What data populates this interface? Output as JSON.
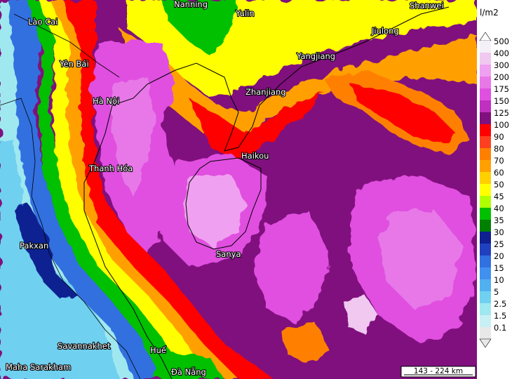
{
  "legend": {
    "unit": "l/m2",
    "levels": [
      {
        "label": "500",
        "color": "#f4f0f8"
      },
      {
        "label": "400",
        "color": "#f0c8f0"
      },
      {
        "label": "300",
        "color": "#f0a0f0"
      },
      {
        "label": "200",
        "color": "#e878e8"
      },
      {
        "label": "175",
        "color": "#e050e0"
      },
      {
        "label": "150",
        "color": "#c030c0"
      },
      {
        "label": "125",
        "color": "#80107e"
      },
      {
        "label": "100",
        "color": "#ff0000"
      },
      {
        "label": "90",
        "color": "#ff4020"
      },
      {
        "label": "80",
        "color": "#ff8000"
      },
      {
        "label": "70",
        "color": "#ffa000"
      },
      {
        "label": "60",
        "color": "#ffd000"
      },
      {
        "label": "50",
        "color": "#ffff00"
      },
      {
        "label": "45",
        "color": "#b0ff00"
      },
      {
        "label": "40",
        "color": "#00c000"
      },
      {
        "label": "35",
        "color": "#008000"
      },
      {
        "label": "30",
        "color": "#102090"
      },
      {
        "label": "25",
        "color": "#2040c0"
      },
      {
        "label": "20",
        "color": "#3070e0"
      },
      {
        "label": "15",
        "color": "#4090f0"
      },
      {
        "label": "10",
        "color": "#50b0f0"
      },
      {
        "label": "5",
        "color": "#70d0f0"
      },
      {
        "label": "2.5",
        "color": "#a0e8f0"
      },
      {
        "label": "1.5",
        "color": "#c8f0f4"
      },
      {
        "label": "0.1",
        "color": "#e8e8e8"
      }
    ]
  },
  "cities": [
    {
      "name": "Nanning"
    },
    {
      "name": "Yulin"
    },
    {
      "name": "Shanwei"
    },
    {
      "name": "Lào Cai"
    },
    {
      "name": "Jiulong"
    },
    {
      "name": "Yên Bái"
    },
    {
      "name": "Yangjiang"
    },
    {
      "name": "Zhanjiang"
    },
    {
      "name": "Hà Nội"
    },
    {
      "name": "Haikou"
    },
    {
      "name": "Thanh Hóa"
    },
    {
      "name": "Sanya"
    },
    {
      "name": "Pakxan"
    },
    {
      "name": "Savannakhet"
    },
    {
      "name": "Huế"
    },
    {
      "name": "Maha Sarakham"
    },
    {
      "name": "Đà Nẵng"
    }
  ],
  "scale_bar": {
    "label": "143 - 224 km"
  },
  "colors": {
    "sea_base": "#80107e",
    "border_line": "#000000"
  }
}
